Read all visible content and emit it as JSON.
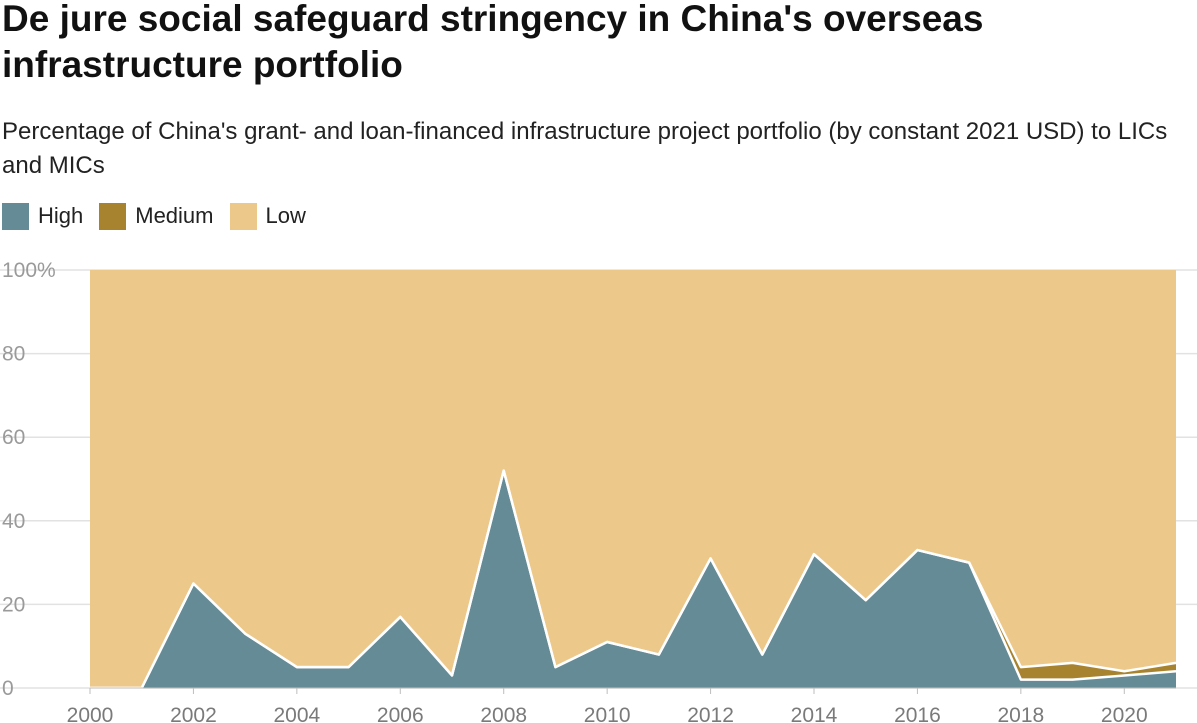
{
  "header": {
    "title": "De jure social safeguard stringency in China's overseas infrastructure portfolio",
    "subtitle": "Percentage of China's grant- and loan-financed infrastructure project portfolio (by constant 2021 USD) to LICs and MICs"
  },
  "chart_data": {
    "type": "area",
    "stacked": true,
    "title": "De jure social safeguard stringency in China's overseas infrastructure portfolio",
    "subtitle": "Percentage of China's grant- and loan-financed infrastructure project portfolio (by constant 2021 USD) to LICs and MICs",
    "x": [
      2000,
      2001,
      2002,
      2003,
      2004,
      2005,
      2006,
      2007,
      2008,
      2009,
      2010,
      2011,
      2012,
      2013,
      2014,
      2015,
      2016,
      2017,
      2018,
      2019,
      2020,
      2021
    ],
    "series": [
      {
        "name": "High",
        "color": "#658b97",
        "values": [
          0,
          0,
          25,
          13,
          5,
          5,
          17,
          3,
          52,
          5,
          11,
          8,
          31,
          8,
          32,
          21,
          33,
          30,
          2,
          2,
          3,
          4
        ]
      },
      {
        "name": "Medium",
        "color": "#a8832f",
        "values": [
          0,
          0,
          0,
          0,
          0,
          0,
          0,
          0,
          0,
          0,
          0,
          0,
          0,
          0,
          0,
          0,
          0,
          0,
          3,
          4,
          1,
          2
        ]
      },
      {
        "name": "Low",
        "color": "#edc88b",
        "values": [
          100,
          100,
          75,
          87,
          95,
          95,
          83,
          97,
          48,
          95,
          89,
          92,
          69,
          92,
          68,
          79,
          67,
          70,
          95,
          94,
          96,
          94
        ]
      }
    ],
    "ylim": [
      0,
      100
    ],
    "xlim": [
      2000,
      2021
    ],
    "y_ticks": [
      0,
      20,
      40,
      60,
      80,
      100
    ],
    "y_tick_labels": [
      "0",
      "20",
      "40",
      "60",
      "80",
      "100%"
    ],
    "x_ticks": [
      2000,
      2002,
      2004,
      2006,
      2008,
      2010,
      2012,
      2014,
      2016,
      2018,
      2020
    ],
    "x_tick_labels": [
      "2000",
      "2002",
      "2004",
      "2006",
      "2008",
      "2010",
      "2012",
      "2014",
      "2016",
      "2018",
      "2020"
    ],
    "grid": true,
    "legend_position": "top-left",
    "xlabel": "",
    "ylabel": ""
  }
}
